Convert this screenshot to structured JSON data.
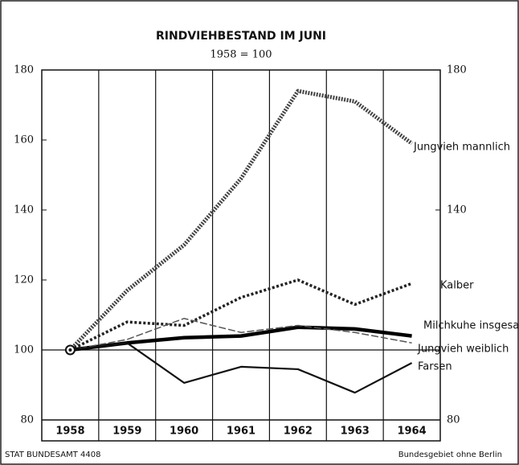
{
  "chart_data": {
    "type": "line",
    "title": "RINDVIEHBESTAND IM JUNI",
    "subtitle": "1958 = 100",
    "categories": [
      "1958",
      "1959",
      "1960",
      "1961",
      "1962",
      "1963",
      "1964"
    ],
    "series": [
      {
        "name": "Jungvieh mannlich",
        "color": "#444444",
        "values": [
          100,
          117,
          130,
          149,
          174,
          171,
          159
        ]
      },
      {
        "name": "Kalber",
        "color": "#222222",
        "values": [
          100,
          108,
          107,
          115,
          120,
          113,
          119
        ]
      },
      {
        "name": "Milchkuhe insgesamt",
        "color": "#000000",
        "values": [
          100,
          102,
          103.5,
          104,
          106.5,
          106,
          104
        ]
      },
      {
        "name": "Jungvieh weiblich",
        "color": "#555555",
        "values": [
          100,
          103,
          109,
          105,
          107,
          105,
          102
        ]
      },
      {
        "name": "Farsen",
        "color": "#111111",
        "values": [
          100,
          102,
          90.6,
          95.2,
          94.5,
          87.8,
          96.3
        ]
      }
    ],
    "ylim": [
      80,
      180
    ],
    "yticks": [
      80,
      100,
      120,
      140,
      160,
      180
    ],
    "y2lim": [
      80,
      180
    ],
    "y2ticks": [
      80,
      140,
      180
    ],
    "footer_left": "STAT BUNDESAMT 4408",
    "footer_right": "Bundesgebiet ohne Berlin"
  }
}
